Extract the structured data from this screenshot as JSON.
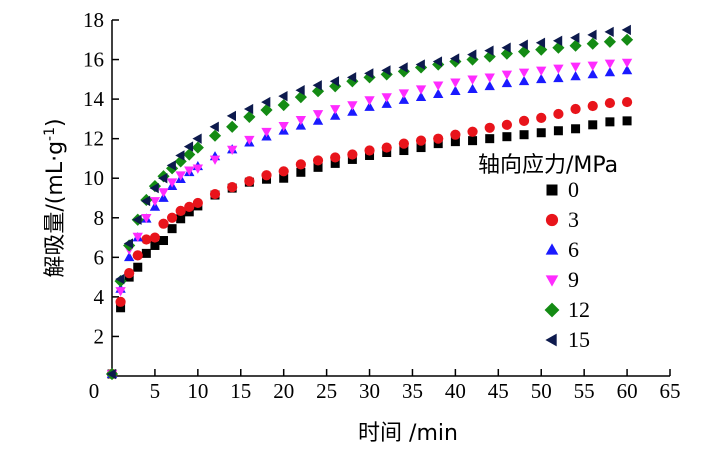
{
  "chart_data": {
    "type": "scatter",
    "xlabel": "时间 /min",
    "ylabel_main": "解吸量/(mL·g",
    "ylabel_sup": "-1",
    "ylabel_end": ")",
    "xlim": [
      0,
      65
    ],
    "ylim": [
      0,
      18
    ],
    "xticks": [
      0,
      5,
      10,
      15,
      20,
      25,
      30,
      35,
      40,
      45,
      50,
      55,
      60,
      65
    ],
    "yticks": [
      2,
      4,
      6,
      8,
      10,
      12,
      14,
      16,
      18
    ],
    "grid": false,
    "legend": {
      "title": "轴向应力/MPa",
      "placement": "right"
    },
    "x": [
      0,
      1,
      2,
      3,
      4,
      5,
      6,
      7,
      8,
      9,
      10,
      12,
      14,
      16,
      18,
      20,
      22,
      24,
      26,
      28,
      30,
      32,
      34,
      36,
      38,
      40,
      42,
      44,
      46,
      48,
      50,
      52,
      54,
      56,
      58,
      60
    ],
    "series": [
      {
        "name": "0",
        "color": "#000000",
        "marker": "square",
        "values": [
          0.1,
          3.45,
          5.0,
          5.5,
          6.2,
          6.6,
          6.85,
          7.45,
          7.95,
          8.3,
          8.6,
          9.15,
          9.5,
          9.8,
          9.95,
          10.0,
          10.3,
          10.55,
          10.75,
          10.95,
          11.15,
          11.3,
          11.4,
          11.55,
          11.75,
          11.85,
          11.9,
          12.0,
          12.1,
          12.2,
          12.3,
          12.4,
          12.5,
          12.7,
          12.85,
          12.9
        ]
      },
      {
        "name": "3",
        "color": "#e8141b",
        "marker": "circle",
        "values": [
          0.1,
          3.75,
          5.2,
          6.1,
          6.9,
          7.0,
          7.7,
          8.0,
          8.35,
          8.55,
          8.75,
          9.2,
          9.55,
          9.85,
          10.15,
          10.35,
          10.7,
          10.9,
          11.05,
          11.2,
          11.4,
          11.55,
          11.75,
          11.9,
          12.0,
          12.2,
          12.35,
          12.55,
          12.7,
          12.9,
          13.05,
          13.25,
          13.5,
          13.65,
          13.8,
          13.85
        ]
      },
      {
        "name": "6",
        "color": "#1a1aff",
        "marker": "triangle-up",
        "values": [
          0.1,
          4.4,
          6.0,
          7.0,
          7.95,
          8.55,
          9.0,
          9.6,
          9.95,
          10.3,
          10.6,
          11.1,
          11.45,
          11.8,
          12.1,
          12.4,
          12.65,
          12.9,
          13.15,
          13.35,
          13.6,
          13.75,
          13.95,
          14.1,
          14.25,
          14.4,
          14.5,
          14.65,
          14.8,
          14.9,
          15.0,
          15.05,
          15.15,
          15.25,
          15.35,
          15.45
        ]
      },
      {
        "name": "9",
        "color": "#ff2bff",
        "marker": "triangle-down",
        "values": [
          0.1,
          4.3,
          6.4,
          7.05,
          8.0,
          8.85,
          9.3,
          9.8,
          10.15,
          10.4,
          10.5,
          10.95,
          11.45,
          11.95,
          12.35,
          12.65,
          12.95,
          13.25,
          13.5,
          13.7,
          13.95,
          14.1,
          14.3,
          14.5,
          14.7,
          14.85,
          15.0,
          15.1,
          15.25,
          15.35,
          15.45,
          15.55,
          15.65,
          15.7,
          15.8,
          15.85
        ]
      },
      {
        "name": "12",
        "color": "#148b14",
        "marker": "diamond",
        "values": [
          0.1,
          4.8,
          6.6,
          7.9,
          8.9,
          9.6,
          10.1,
          10.5,
          10.85,
          11.2,
          11.55,
          12.15,
          12.6,
          13.1,
          13.45,
          13.7,
          14.1,
          14.4,
          14.65,
          14.9,
          15.1,
          15.25,
          15.4,
          15.6,
          15.75,
          15.9,
          16.0,
          16.15,
          16.3,
          16.4,
          16.5,
          16.6,
          16.7,
          16.8,
          16.9,
          17.0
        ]
      },
      {
        "name": "15",
        "color": "#0d1a4d",
        "marker": "triangle-left",
        "values": [
          0.1,
          4.9,
          6.7,
          7.9,
          8.85,
          9.5,
          10.0,
          10.65,
          11.15,
          11.6,
          12.0,
          12.6,
          13.15,
          13.5,
          13.85,
          14.15,
          14.45,
          14.7,
          14.9,
          15.1,
          15.3,
          15.45,
          15.6,
          15.75,
          15.9,
          16.05,
          16.25,
          16.45,
          16.6,
          16.75,
          16.85,
          16.95,
          17.1,
          17.25,
          17.4,
          17.5
        ]
      }
    ]
  }
}
